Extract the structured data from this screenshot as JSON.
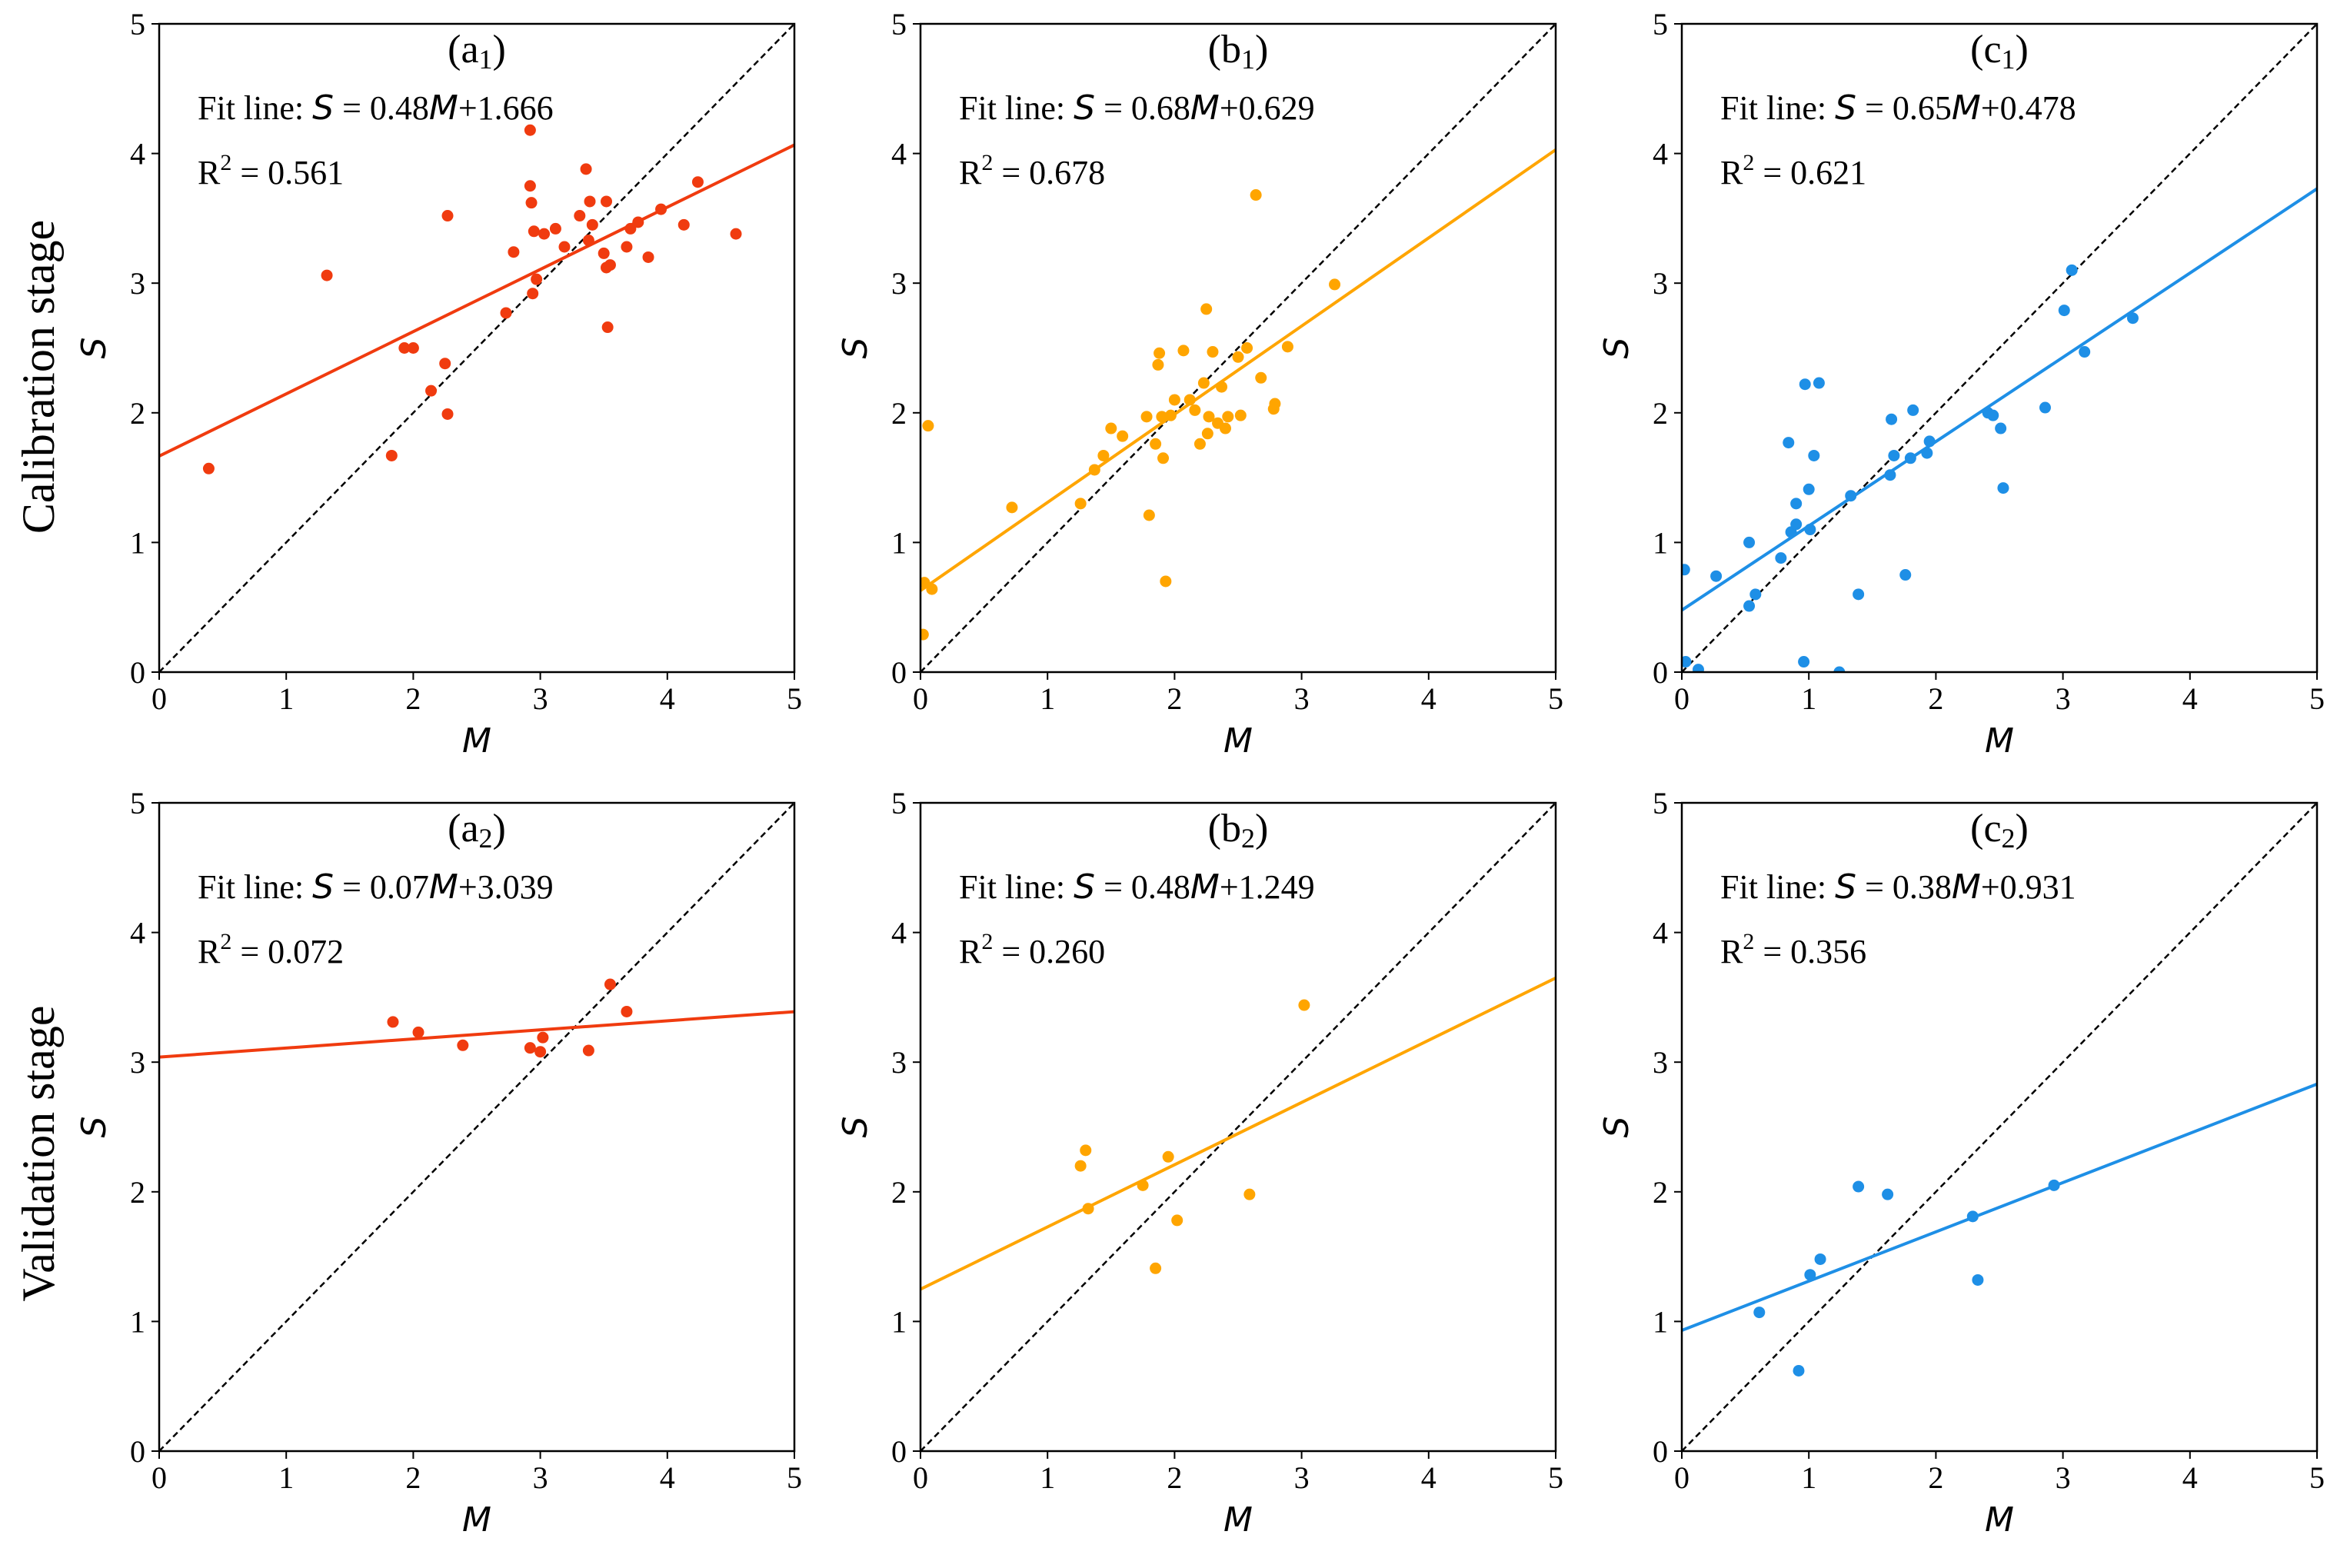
{
  "row_labels": [
    "Calibration stage",
    "Validation stage"
  ],
  "colors": {
    "a": "#f03b0f",
    "b": "#ffa500",
    "c": "#1e8fe6",
    "identity": "#000000"
  },
  "chart_data": [
    {
      "type": "scatter",
      "panel": "a",
      "row": 0,
      "col": 0,
      "label_main": "(a",
      "label_sub": "1",
      "label_end": ")",
      "xlabel": "M",
      "ylabel": "S",
      "xlim": [
        0,
        5
      ],
      "ylim": [
        0,
        5
      ],
      "xticks": [
        "0",
        "1",
        "2",
        "3",
        "4",
        "5"
      ],
      "yticks": [
        "0",
        "1",
        "2",
        "3",
        "4",
        "5"
      ],
      "fit_prefix": "Fit line: ",
      "fit_S": "S",
      "fit_mid": " = 0.48",
      "fit_M": "M",
      "fit_end": "+1.666",
      "r2_R": "R",
      "r2_sup": "2",
      "r2_val": " = 0.561",
      "fit": {
        "slope": 0.48,
        "intercept": 1.666
      },
      "x": [
        0.39,
        1.32,
        1.93,
        2.0,
        2.27,
        2.25,
        2.27,
        2.14,
        1.83,
        2.73,
        2.79,
        2.92,
        2.92,
        2.93,
        2.94,
        2.95,
        2.97,
        3.03,
        3.12,
        3.19,
        3.31,
        3.38,
        3.41,
        3.39,
        3.5,
        3.52,
        3.53,
        3.55,
        3.52,
        3.68,
        3.71,
        3.77,
        3.85,
        3.95,
        4.13,
        4.24,
        4.54,
        3.36
      ],
      "y": [
        1.57,
        3.06,
        2.5,
        2.5,
        3.52,
        2.38,
        1.99,
        2.17,
        1.67,
        2.77,
        3.24,
        4.18,
        3.75,
        3.62,
        2.92,
        3.4,
        3.03,
        3.38,
        3.42,
        3.28,
        3.52,
        3.33,
        3.45,
        3.63,
        3.23,
        3.63,
        2.66,
        3.14,
        3.12,
        3.28,
        3.42,
        3.47,
        3.2,
        3.57,
        3.45,
        3.78,
        3.38,
        3.88
      ]
    },
    {
      "type": "scatter",
      "panel": "b",
      "row": 0,
      "col": 1,
      "label_main": "(b",
      "label_sub": "1",
      "label_end": ")",
      "xlabel": "M",
      "ylabel": "S",
      "xlim": [
        0,
        5
      ],
      "ylim": [
        0,
        5
      ],
      "xticks": [
        "0",
        "1",
        "2",
        "3",
        "4",
        "5"
      ],
      "yticks": [
        "0",
        "1",
        "2",
        "3",
        "4",
        "5"
      ],
      "fit_prefix": "Fit line: ",
      "fit_S": "S",
      "fit_mid": " = 0.68",
      "fit_M": "M",
      "fit_end": "+0.629",
      "r2_R": "R",
      "r2_sup": "2",
      "r2_val": " = 0.678",
      "fit": {
        "slope": 0.68,
        "intercept": 0.629
      },
      "x": [
        0.02,
        0.03,
        0.06,
        0.09,
        0.72,
        1.26,
        1.37,
        1.44,
        1.5,
        1.59,
        1.78,
        1.8,
        1.85,
        1.87,
        1.88,
        1.9,
        1.91,
        1.93,
        1.97,
        2.0,
        2.07,
        2.12,
        2.16,
        2.2,
        2.23,
        2.25,
        2.27,
        2.3,
        2.34,
        2.37,
        2.4,
        2.42,
        2.5,
        2.52,
        2.57,
        2.64,
        2.68,
        2.78,
        2.79,
        2.89,
        3.26,
        2.26
      ],
      "y": [
        0.29,
        0.69,
        1.9,
        0.64,
        1.27,
        1.3,
        1.56,
        1.67,
        1.88,
        1.82,
        1.97,
        1.21,
        1.76,
        2.37,
        2.46,
        1.97,
        1.65,
        0.7,
        1.98,
        2.1,
        2.48,
        2.1,
        2.02,
        1.76,
        2.23,
        2.8,
        1.97,
        2.47,
        1.92,
        2.2,
        1.88,
        1.97,
        2.43,
        1.98,
        2.5,
        3.68,
        2.27,
        2.03,
        2.07,
        2.51,
        2.99,
        1.84
      ]
    },
    {
      "type": "scatter",
      "panel": "c",
      "row": 0,
      "col": 2,
      "label_main": "(c",
      "label_sub": "1",
      "label_end": ")",
      "xlabel": "M",
      "ylabel": "S",
      "xlim": [
        0,
        5
      ],
      "ylim": [
        0,
        5
      ],
      "xticks": [
        "0",
        "1",
        "2",
        "3",
        "4",
        "5"
      ],
      "yticks": [
        "0",
        "1",
        "2",
        "3",
        "4",
        "5"
      ],
      "fit_prefix": "Fit line: ",
      "fit_S": "S",
      "fit_mid": " = 0.65",
      "fit_M": "M",
      "fit_end": "+0.478",
      "r2_R": "R",
      "r2_sup": "2",
      "r2_val": " = 0.621",
      "fit": {
        "slope": 0.65,
        "intercept": 0.478
      },
      "x": [
        0.02,
        0.03,
        0.13,
        0.27,
        0.53,
        0.53,
        0.58,
        0.78,
        0.84,
        0.86,
        0.9,
        0.9,
        0.96,
        0.97,
        1.0,
        1.01,
        1.04,
        1.08,
        1.24,
        1.33,
        1.39,
        1.64,
        1.65,
        1.67,
        1.76,
        1.8,
        1.82,
        1.93,
        1.95,
        2.41,
        2.45,
        2.51,
        2.53,
        2.86,
        3.01,
        3.07,
        3.17,
        3.55
      ],
      "y": [
        0.79,
        0.08,
        0.02,
        0.74,
        1.0,
        0.51,
        0.6,
        0.88,
        1.77,
        1.08,
        1.3,
        1.14,
        0.08,
        2.22,
        1.41,
        1.1,
        1.67,
        2.23,
        0.0,
        1.36,
        0.6,
        1.52,
        1.95,
        1.67,
        0.75,
        1.65,
        2.02,
        1.69,
        1.78,
        2.0,
        1.98,
        1.88,
        1.42,
        2.04,
        2.79,
        3.1,
        2.47,
        2.73
      ]
    },
    {
      "type": "scatter",
      "panel": "a",
      "row": 1,
      "col": 0,
      "label_main": "(a",
      "label_sub": "2",
      "label_end": ")",
      "xlabel": "M",
      "ylabel": "S",
      "xlim": [
        0,
        5
      ],
      "ylim": [
        0,
        5
      ],
      "xticks": [
        "0",
        "1",
        "2",
        "3",
        "4",
        "5"
      ],
      "yticks": [
        "0",
        "1",
        "2",
        "3",
        "4",
        "5"
      ],
      "fit_prefix": "Fit line: ",
      "fit_S": "S",
      "fit_mid": " = 0.07",
      "fit_M": "M",
      "fit_end": "+3.039",
      "r2_R": "R",
      "r2_sup": "2",
      "r2_val": " = 0.072",
      "fit": {
        "slope": 0.07,
        "intercept": 3.039
      },
      "x": [
        1.84,
        2.04,
        2.39,
        2.92,
        3.0,
        3.02,
        3.38,
        3.55,
        3.68
      ],
      "y": [
        3.31,
        3.23,
        3.13,
        3.11,
        3.08,
        3.19,
        3.09,
        3.6,
        3.39
      ]
    },
    {
      "type": "scatter",
      "panel": "b",
      "row": 1,
      "col": 1,
      "label_main": "(b",
      "label_sub": "2",
      "label_end": ")",
      "xlabel": "M",
      "ylabel": "S",
      "xlim": [
        0,
        5
      ],
      "ylim": [
        0,
        5
      ],
      "xticks": [
        "0",
        "1",
        "2",
        "3",
        "4",
        "5"
      ],
      "yticks": [
        "0",
        "1",
        "2",
        "3",
        "4",
        "5"
      ],
      "fit_prefix": "Fit line: ",
      "fit_S": "S",
      "fit_mid": " = 0.48",
      "fit_M": "M",
      "fit_end": "+1.249",
      "r2_R": "R",
      "r2_sup": "2",
      "r2_val": " = 0.260",
      "fit": {
        "slope": 0.48,
        "intercept": 1.249
      },
      "x": [
        1.26,
        1.3,
        1.32,
        1.75,
        1.85,
        1.95,
        2.02,
        2.59,
        3.02
      ],
      "y": [
        2.2,
        2.32,
        1.87,
        2.05,
        1.41,
        2.27,
        1.78,
        1.98,
        3.44
      ]
    },
    {
      "type": "scatter",
      "panel": "c",
      "row": 1,
      "col": 2,
      "label_main": "(c",
      "label_sub": "2",
      "label_end": ")",
      "xlabel": "M",
      "ylabel": "S",
      "xlim": [
        0,
        5
      ],
      "ylim": [
        0,
        5
      ],
      "xticks": [
        "0",
        "1",
        "2",
        "3",
        "4",
        "5"
      ],
      "yticks": [
        "0",
        "1",
        "2",
        "3",
        "4",
        "5"
      ],
      "fit_prefix": "Fit line: ",
      "fit_S": "S",
      "fit_mid": " = 0.38",
      "fit_M": "M",
      "fit_end": "+0.931",
      "r2_R": "R",
      "r2_sup": "2",
      "r2_val": " = 0.356",
      "fit": {
        "slope": 0.38,
        "intercept": 0.931
      },
      "x": [
        0.61,
        0.92,
        1.01,
        1.09,
        1.39,
        1.62,
        2.29,
        2.33,
        2.93
      ],
      "y": [
        1.07,
        0.62,
        1.36,
        1.48,
        2.04,
        1.98,
        1.81,
        1.32,
        2.05
      ]
    }
  ]
}
